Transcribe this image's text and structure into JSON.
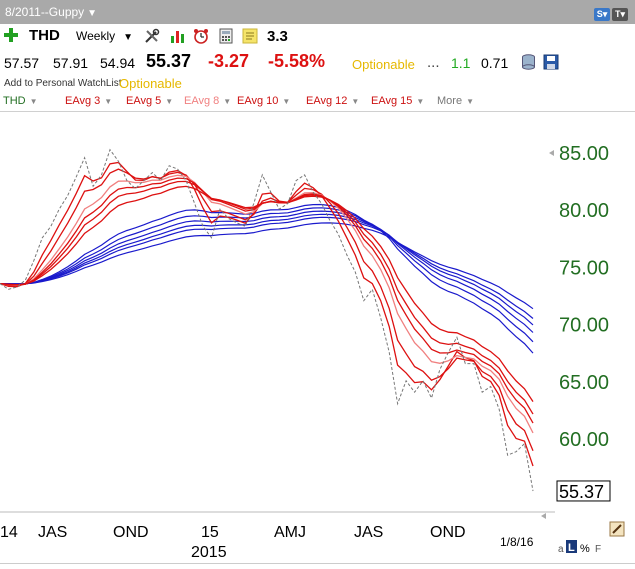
{
  "window": {
    "title": "8/2011--Guppy"
  },
  "toolbar": {
    "symbol": "THD",
    "period": "Weekly",
    "last_price": "55.37",
    "change": "-3.27",
    "change_pct": "-5.58%",
    "extra_value": "3.3",
    "open": "57.57",
    "high": "57.91",
    "low": "54.94",
    "optionable": "Optionable",
    "ellipsis": "...",
    "val_green": "1.1",
    "val_black": "0.71",
    "watchlist": "Add to Personal WatchList",
    "optionable2": "Optionable"
  },
  "legend": [
    {
      "label": "THD",
      "color": "#226e22"
    },
    {
      "label": "EAvg 3",
      "color": "#cc1111"
    },
    {
      "label": "EAvg 5",
      "color": "#cc1111"
    },
    {
      "label": "EAvg 8",
      "color": "#f08080"
    },
    {
      "label": "EAvg 10",
      "color": "#cc1111"
    },
    {
      "label": "EAvg 12",
      "color": "#cc1111"
    },
    {
      "label": "EAvg 15",
      "color": "#cc1111"
    },
    {
      "label": "More",
      "color": "#777777"
    }
  ],
  "chart_data": {
    "type": "line",
    "y_ticks": [
      "85.00",
      "80.00",
      "75.00",
      "70.00",
      "65.00",
      "60.00"
    ],
    "x_ticks": [
      "14",
      "JAS",
      "OND",
      "15",
      "AMJ",
      "JAS",
      "OND"
    ],
    "x_year_label": "2015",
    "last_price_tag": "55.37",
    "date_label": "1/8/16",
    "ylim": [
      53,
      88
    ],
    "price_series": [
      73.5,
      73,
      73.2,
      73.8,
      75.5,
      77.5,
      78.5,
      80,
      81.2,
      82.8,
      84.5,
      82,
      83,
      85.2,
      84.2,
      82.5,
      81.8,
      82.5,
      83.2,
      82.5,
      83.8,
      83.5,
      82.5,
      80.5,
      78.5,
      77.5,
      80,
      79.2,
      78.8,
      78.5,
      80.5,
      83,
      81.5,
      80,
      80.5,
      82.5,
      83,
      81.5,
      80.5,
      79,
      77.8,
      76,
      74.5,
      72,
      73,
      70.5,
      67.5,
      63,
      65,
      64,
      65,
      63.5,
      66,
      67.5,
      68.8,
      66.5,
      66.5,
      64,
      64.5,
      62.5,
      58.5,
      58.8,
      59.5,
      55.37
    ],
    "series": [
      {
        "name": "EAvg 3",
        "color": "#dd1111"
      },
      {
        "name": "EAvg 5",
        "color": "#dd1111"
      },
      {
        "name": "EAvg 8",
        "color": "#f08080"
      },
      {
        "name": "EAvg 10",
        "color": "#dd1111"
      },
      {
        "name": "EAvg 12",
        "color": "#dd1111"
      },
      {
        "name": "EAvg 15",
        "color": "#dd1111"
      }
    ]
  },
  "status": {
    "mode_a": "a",
    "mode_l": "L",
    "mode_pct": "%",
    "mode_f": "F"
  }
}
